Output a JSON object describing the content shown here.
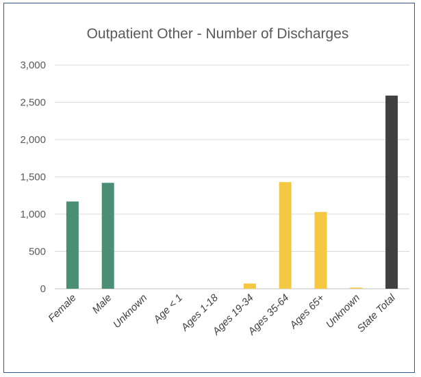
{
  "chart_data": {
    "type": "bar",
    "title": "Outpatient Other - Number of Discharges",
    "xlabel": "",
    "ylabel": "",
    "ylim": [
      0,
      3000
    ],
    "yticks": [
      0,
      500,
      1000,
      1500,
      2000,
      2500,
      3000
    ],
    "ytick_labels": [
      "0",
      "500",
      "1,000",
      "1,500",
      "2,000",
      "2,500",
      "3,000"
    ],
    "grid": true,
    "legend": "none",
    "categories": [
      "Female",
      "Male",
      "Unknown",
      "Age < 1",
      "Ages 1-18",
      "Ages 19-34",
      "Ages 35-64",
      "Ages 65+",
      "Unknown",
      "State Total"
    ],
    "values": [
      1170,
      1420,
      0,
      0,
      0,
      70,
      1430,
      1030,
      15,
      2590
    ],
    "colors": [
      "#4a8f74",
      "#4a8f74",
      "#4a8f74",
      "#f4c842",
      "#f4c842",
      "#f4c842",
      "#f4c842",
      "#f4c842",
      "#f4c842",
      "#404040"
    ]
  }
}
